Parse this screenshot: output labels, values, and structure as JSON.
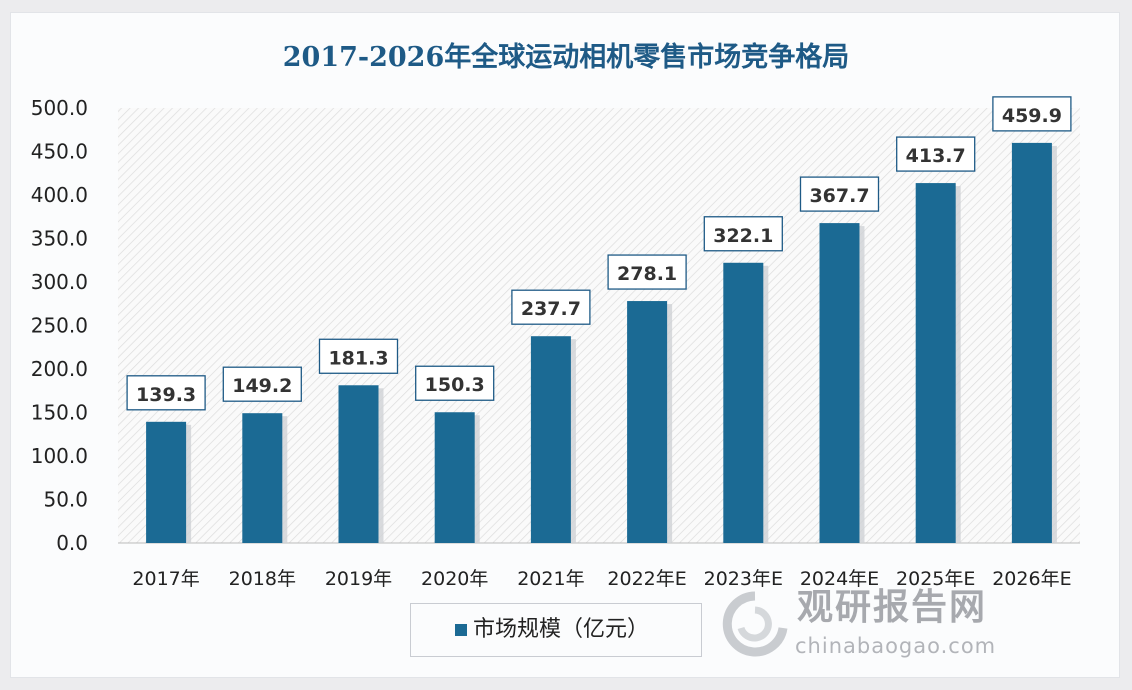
{
  "chart_data": {
    "type": "bar",
    "title": "2017-2026年全球运动相机零售市场竞争格局",
    "categories": [
      "2017年",
      "2018年",
      "2019年",
      "2020年",
      "2021年",
      "2022年E",
      "2023年E",
      "2024年E",
      "2025年E",
      "2026年E"
    ],
    "series": [
      {
        "name": "市场规模（亿元）",
        "values": [
          139.3,
          149.2,
          181.3,
          150.3,
          237.7,
          278.1,
          322.1,
          367.7,
          413.7,
          459.9
        ]
      }
    ],
    "data_labels": [
      "139.3",
      "149.2",
      "181.3",
      "150.3",
      "237.7",
      "278.1",
      "322.1",
      "367.7",
      "413.7",
      "459.9"
    ],
    "yticks": [
      "0.0",
      "50.0",
      "100.0",
      "150.0",
      "200.0",
      "250.0",
      "300.0",
      "350.0",
      "400.0",
      "450.0",
      "500.0"
    ],
    "ylim": [
      0,
      500
    ],
    "xlabel": "",
    "ylabel": "",
    "grid": false,
    "legend": "bottom-left",
    "colors": {
      "bar": "#1b6a94",
      "title": "#1e5a86",
      "label_border": "#1e5a86"
    }
  },
  "watermark": {
    "cn": "观研报告网",
    "en": "chinabaogao.com"
  }
}
